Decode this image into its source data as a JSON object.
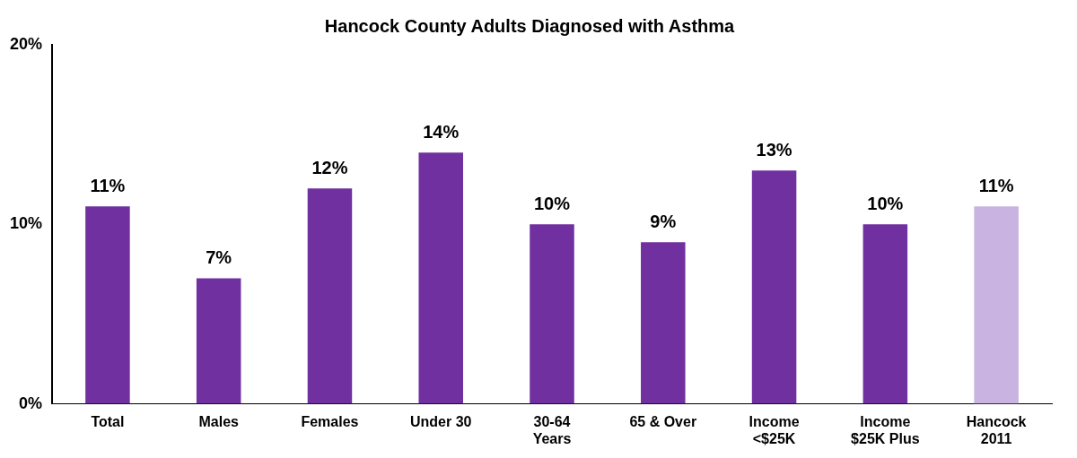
{
  "chart_data": {
    "type": "bar",
    "title": "Hancock County Adults Diagnosed with Asthma",
    "categories": [
      "Total",
      "Males",
      "Females",
      "Under 30",
      "30-64\nYears",
      "65 & Over",
      "Income\n<$25K",
      "Income\n$25K Plus",
      "Hancock\n2011"
    ],
    "values": [
      11,
      7,
      12,
      14,
      10,
      9,
      13,
      10,
      11
    ],
    "value_labels": [
      "11%",
      "7%",
      "12%",
      "14%",
      "10%",
      "9%",
      "13%",
      "10%",
      "11%"
    ],
    "colors": [
      "#7030a0",
      "#7030a0",
      "#7030a0",
      "#7030a0",
      "#7030a0",
      "#7030a0",
      "#7030a0",
      "#7030a0",
      "#c9b3e0"
    ],
    "ylim": [
      0,
      20
    ],
    "yticks": [
      {
        "value": 0,
        "label": "0%"
      },
      {
        "value": 10,
        "label": "10%"
      },
      {
        "value": 20,
        "label": "20%"
      }
    ],
    "grid": false,
    "legend": false
  }
}
